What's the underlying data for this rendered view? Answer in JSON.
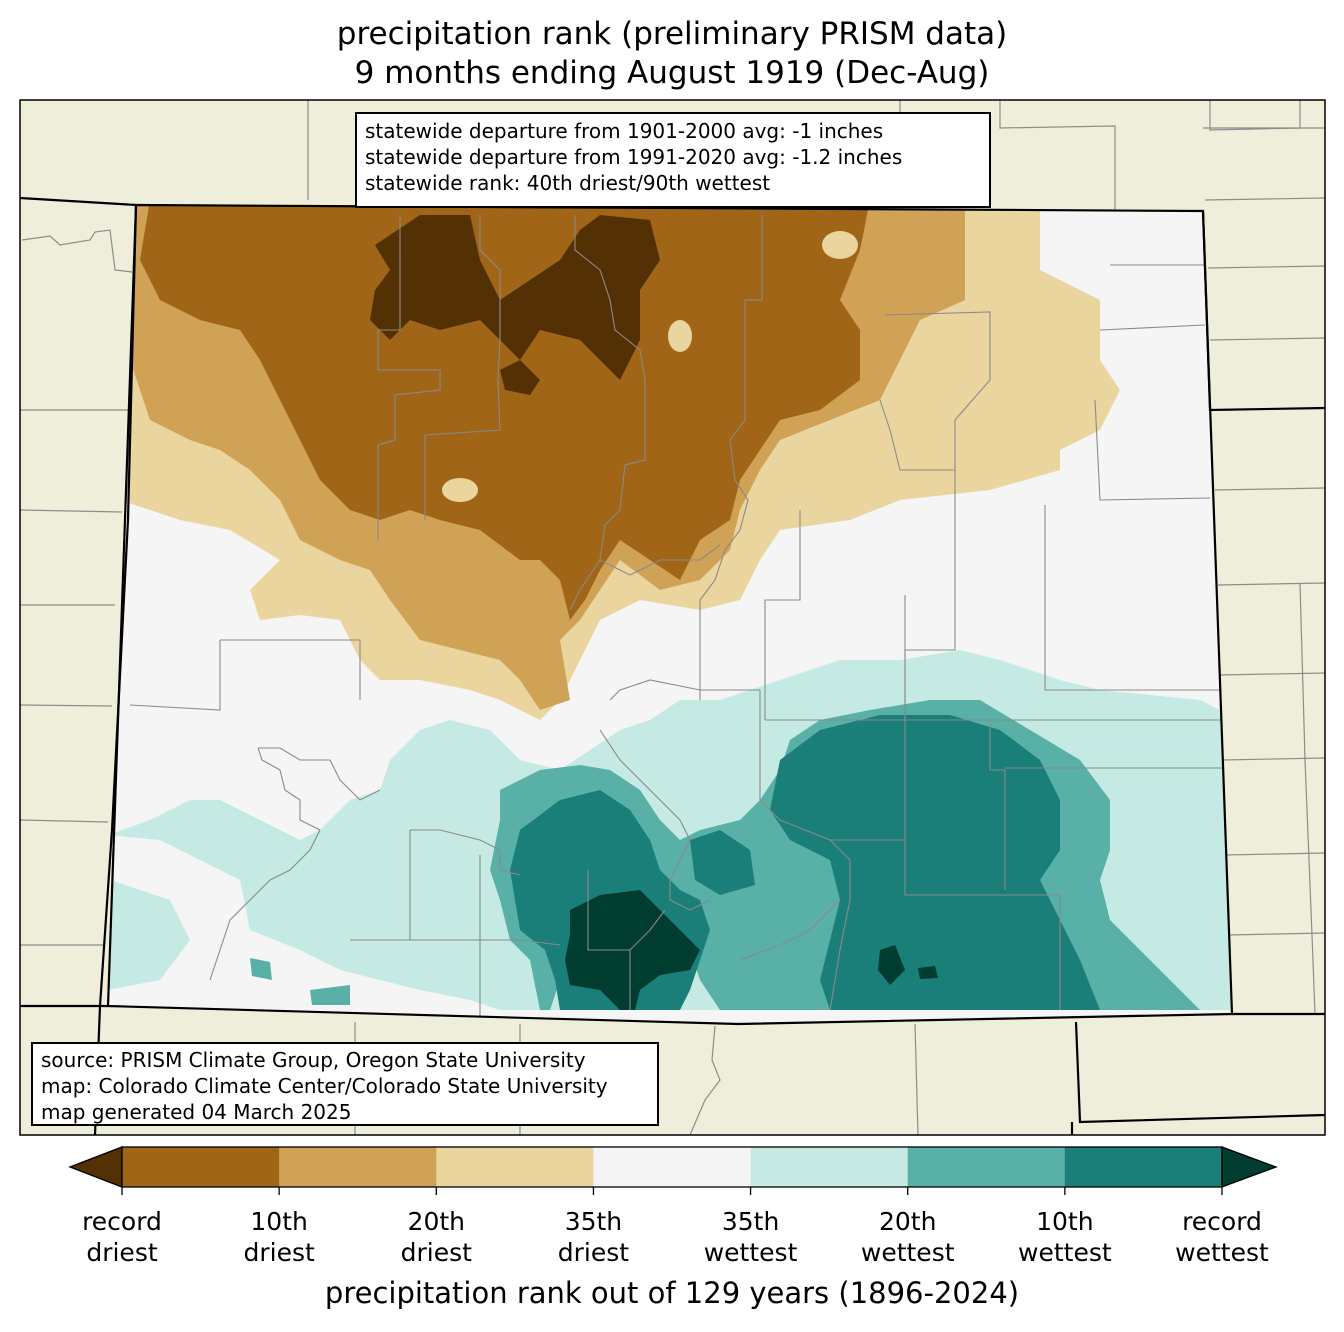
{
  "title": {
    "line1": "precipitation rank (preliminary PRISM data)",
    "line2": "9 months ending August 1919 (Dec-Aug)"
  },
  "stats": {
    "line1": "statewide departure from 1901-2000 avg: -1 inches",
    "line2": "statewide departure from 1991-2020 avg: -1.2 inches",
    "line3": "statewide rank: 40th driest/90th wettest"
  },
  "source": {
    "line1": "source: PRISM Climate Group, Oregon State University",
    "line2": "map: Colorado Climate Center/Colorado State University",
    "line3": "map generated 04 March 2025"
  },
  "colorbar": {
    "title": "precipitation rank out of 129 years (1896-2024)",
    "low_color": "#543005",
    "high_color": "#003c30",
    "colors": [
      "#a16518",
      "#cfa256",
      "#ebd59f",
      "#f4f5f4",
      "#c5eae3",
      "#58b0a6",
      "#1a7f78"
    ],
    "ticks": [
      {
        "l1": "record",
        "l2": "driest"
      },
      {
        "l1": "10th",
        "l2": "driest"
      },
      {
        "l1": "20th",
        "l2": "driest"
      },
      {
        "l1": "35th",
        "l2": "driest"
      },
      {
        "l1": "35th",
        "l2": "wettest"
      },
      {
        "l1": "20th",
        "l2": "wettest"
      },
      {
        "l1": "10th",
        "l2": "wettest"
      },
      {
        "l1": "record",
        "l2": "wettest"
      }
    ]
  },
  "map": {
    "background_color": "#efeedb",
    "state_color": "#f4f5f4"
  }
}
